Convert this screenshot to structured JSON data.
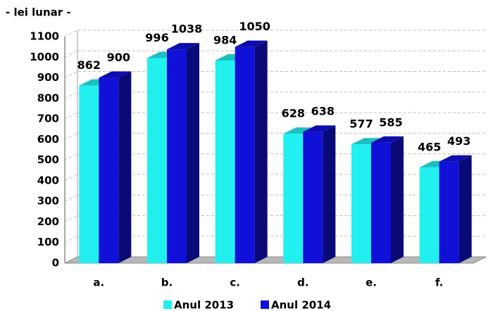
{
  "chart_data": {
    "type": "bar3d",
    "axis_label": "- lei lunar -",
    "categories": [
      "a.",
      "b.",
      "c.",
      "d.",
      "e.",
      "f."
    ],
    "series": [
      {
        "name": "Anul 2013",
        "color": "#22f0f0",
        "values": [
          862,
          996,
          984,
          628,
          577,
          465
        ]
      },
      {
        "name": "Anul 2014",
        "color": "#1010d8",
        "values": [
          900,
          1038,
          1050,
          638,
          585,
          493
        ]
      }
    ],
    "ylim": [
      0,
      1100
    ],
    "yticks": [
      0,
      100,
      200,
      300,
      400,
      500,
      600,
      700,
      800,
      900,
      1000,
      1100
    ],
    "grid": true,
    "legend": "bottom"
  }
}
